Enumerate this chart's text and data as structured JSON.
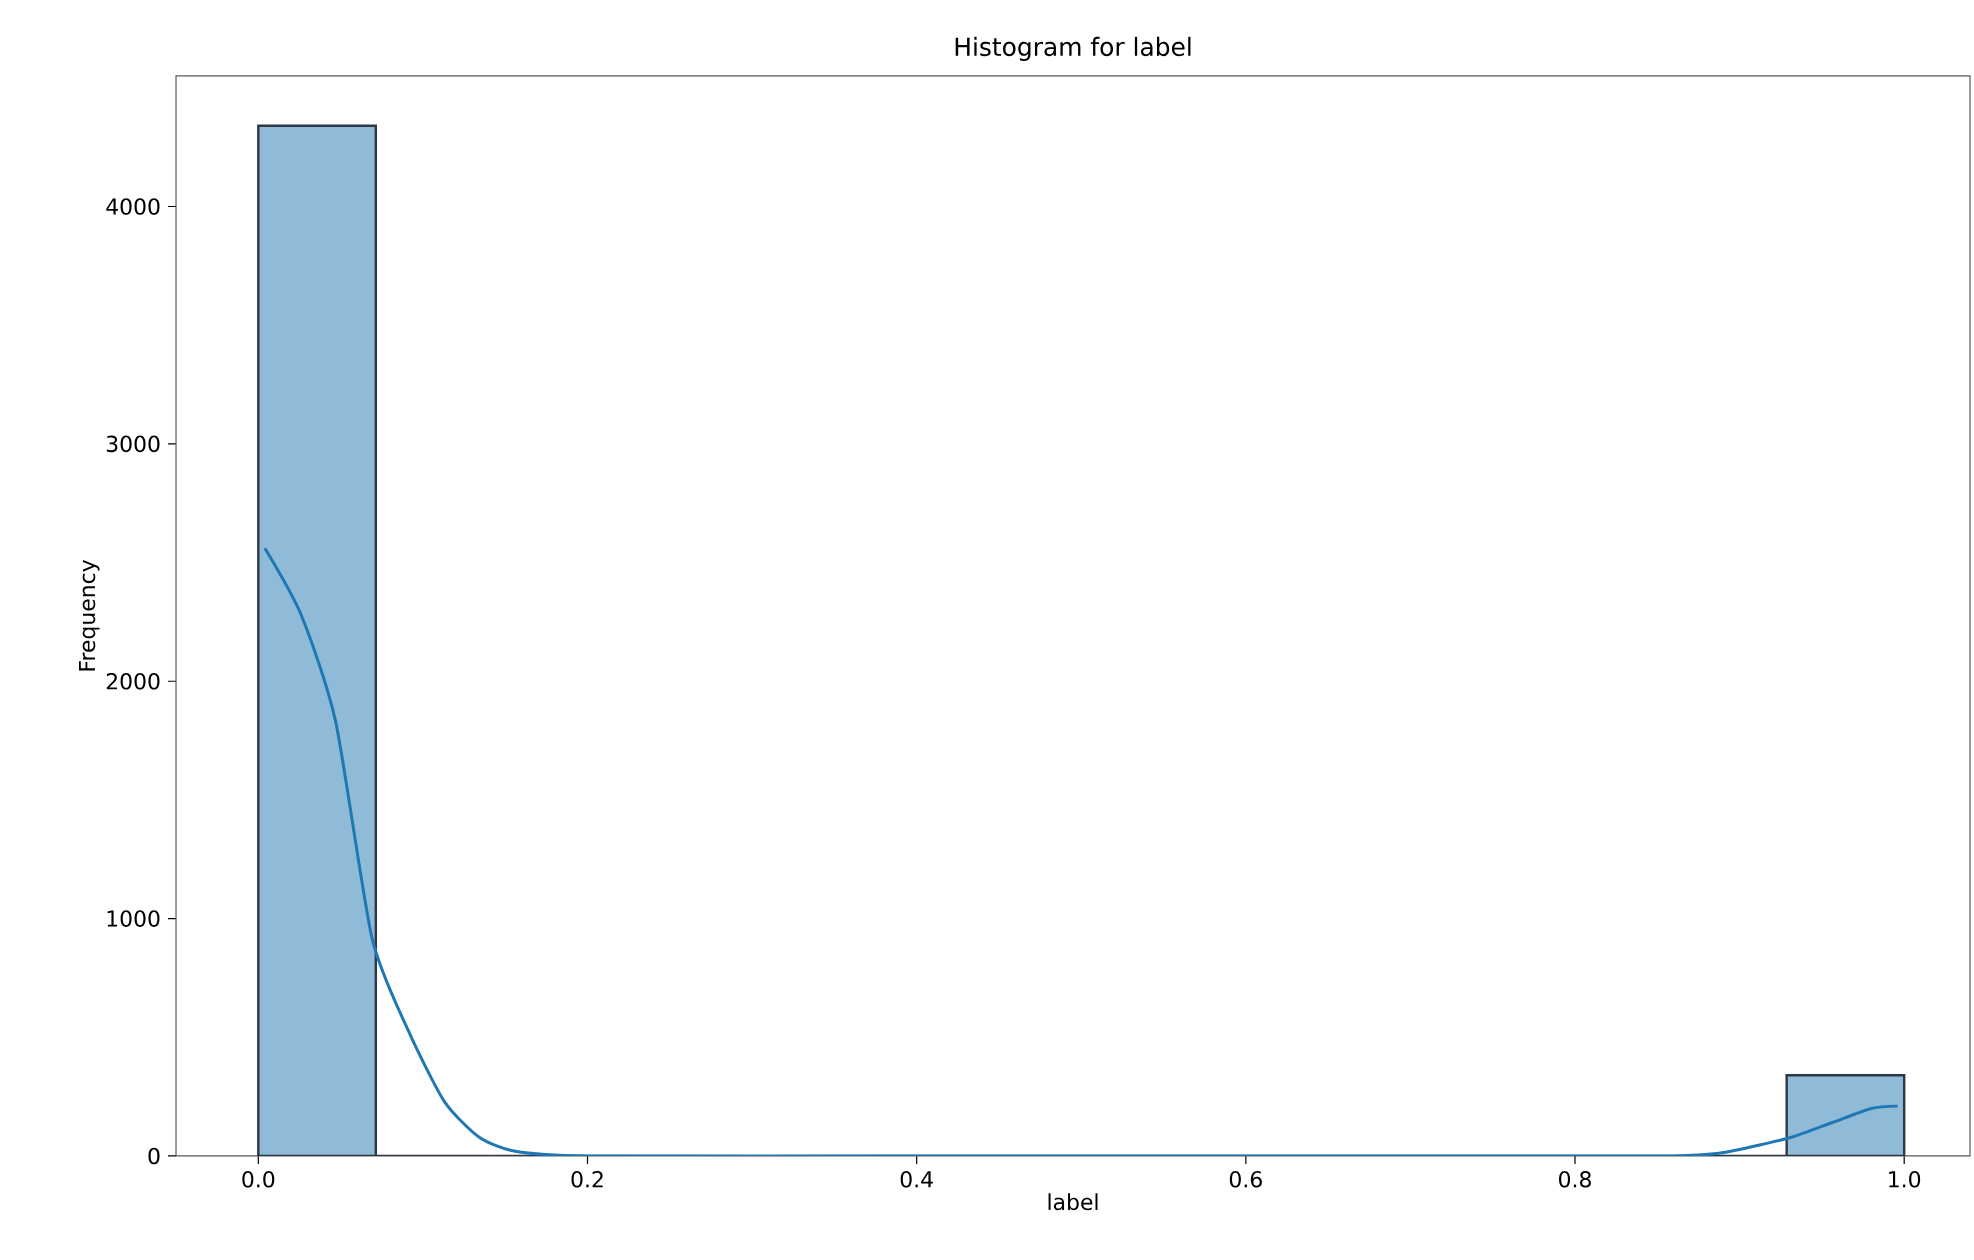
{
  "chart_data": {
    "type": "histogram",
    "title": "Histogram for label",
    "xlabel": "label",
    "ylabel": "Frequency",
    "xlim": [
      -0.05,
      1.04
    ],
    "ylim": [
      0,
      4550
    ],
    "xticks": [
      {
        "value": 0,
        "label": "0.0"
      },
      0.2,
      0.4,
      0.6,
      0.8,
      {
        "value": 1,
        "label": "1.0"
      }
    ],
    "yticks": [
      0,
      1000,
      2000,
      3000,
      4000
    ],
    "series": [
      {
        "color": "#8fbbd9",
        "bins": [
          0,
          0.0714,
          0.1429,
          0.2143,
          0.2857,
          0.3571,
          0.4286,
          0.5,
          0.5714,
          0.6429,
          0.7143,
          0.7857,
          0.8571,
          0.9286,
          1.0
        ],
        "values": [
          4340,
          0,
          0,
          0,
          0,
          0,
          0,
          0,
          0,
          0,
          0,
          0,
          0,
          340
        ]
      },
      {
        "type": "line",
        "color": "#1f77b4",
        "x": [
          0.004,
          0.026,
          0.047,
          0.069,
          0.091,
          0.113,
          0.134,
          0.156,
          0.2,
          0.4,
          0.6,
          0.8,
          0.86,
          0.886,
          0.908,
          0.932,
          0.956,
          0.98,
          0.996
        ],
        "values": [
          2560,
          2280,
          1830,
          920,
          530,
          230,
          80,
          20,
          0,
          0,
          0,
          0,
          0,
          10,
          40,
          80,
          140,
          200,
          210
        ]
      }
    ]
  }
}
